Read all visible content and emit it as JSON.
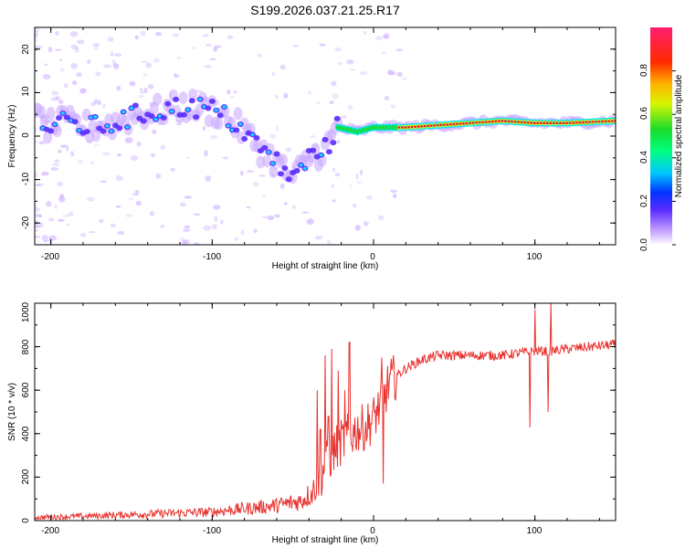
{
  "chart_data": [
    {
      "type": "heatmap",
      "title": "S199.2026.037.21.25.R17",
      "xlabel": "Height of straight line (km)",
      "ylabel": "Frequency (Hz)",
      "xlim": [
        -210,
        150
      ],
      "ylim": [
        -25,
        25
      ],
      "xticks": [
        -200,
        -100,
        0,
        100
      ],
      "xtick_labels": [
        "-200",
        "-100",
        "0",
        "100"
      ],
      "yticks": [
        -20,
        -10,
        0,
        10,
        20
      ],
      "ytick_labels": [
        "-20",
        "-10",
        "0",
        "10",
        "20"
      ],
      "colorbar": {
        "label": "Normalized spectral amplitude",
        "range": [
          0,
          1
        ],
        "ticks": [
          0.0,
          0.2,
          0.4,
          0.6,
          0.8
        ],
        "tick_labels": [
          "0.0",
          "0.2",
          "0.4",
          "0.6",
          "0.8"
        ],
        "colormap": "rainbow (white-violet-blue-cyan-green-yellow-red-pink)"
      },
      "ridge": {
        "description": "Dominant frequency track vs height",
        "x": [
          -205,
          -190,
          -175,
          -160,
          -145,
          -130,
          -115,
          -100,
          -90,
          -80,
          -70,
          -60,
          -50,
          -40,
          -30,
          -22,
          -10,
          0,
          20,
          40,
          60,
          80,
          100,
          120,
          150
        ],
        "y": [
          2,
          3,
          2,
          3,
          5,
          6,
          7,
          6,
          4,
          1,
          -3,
          -6,
          -10,
          -5,
          -3,
          2,
          1,
          2,
          2,
          2.5,
          3,
          3.5,
          3,
          3,
          3.5
        ]
      },
      "colors": {
        "low": "#c9a6ff",
        "mid": "#5a2bff",
        "cyan": "#00e5ff",
        "green": "#1bdc2c",
        "yellow": "#f5f500",
        "red": "#f21818"
      }
    },
    {
      "type": "line",
      "xlabel": "Height of straight line (km)",
      "ylabel": "SNR (10 * v/v)",
      "xlim": [
        -210,
        150
      ],
      "ylim": [
        0,
        1000
      ],
      "xticks": [
        -200,
        -100,
        0,
        100
      ],
      "xtick_labels": [
        "-200",
        "-100",
        "0",
        "100"
      ],
      "yticks": [
        0,
        200,
        400,
        600,
        800,
        1000
      ],
      "ytick_labels": [
        "0",
        "200",
        "400",
        "600",
        "800",
        "1000"
      ],
      "series": [
        {
          "name": "SNR",
          "color": "#e8322f",
          "x": [
            -210,
            -180,
            -150,
            -120,
            -100,
            -80,
            -60,
            -45,
            -38,
            -32,
            -25,
            -20,
            -15,
            -10,
            -5,
            0,
            5,
            10,
            20,
            30,
            40,
            60,
            80,
            90,
            100,
            110,
            120,
            135,
            150
          ],
          "y": [
            15,
            20,
            28,
            35,
            40,
            55,
            70,
            90,
            130,
            220,
            320,
            360,
            390,
            420,
            430,
            470,
            540,
            640,
            700,
            740,
            760,
            760,
            760,
            770,
            780,
            780,
            790,
            800,
            810
          ]
        }
      ],
      "spikes": {
        "x": [
          -35,
          -33,
          -30,
          -28,
          -26,
          -22,
          -18,
          -15,
          5,
          6,
          97,
          100,
          108,
          110
        ],
        "y": [
          600,
          420,
          760,
          480,
          790,
          690,
          600,
          820,
          750,
          170,
          430,
          970,
          500,
          1000
        ]
      }
    }
  ]
}
